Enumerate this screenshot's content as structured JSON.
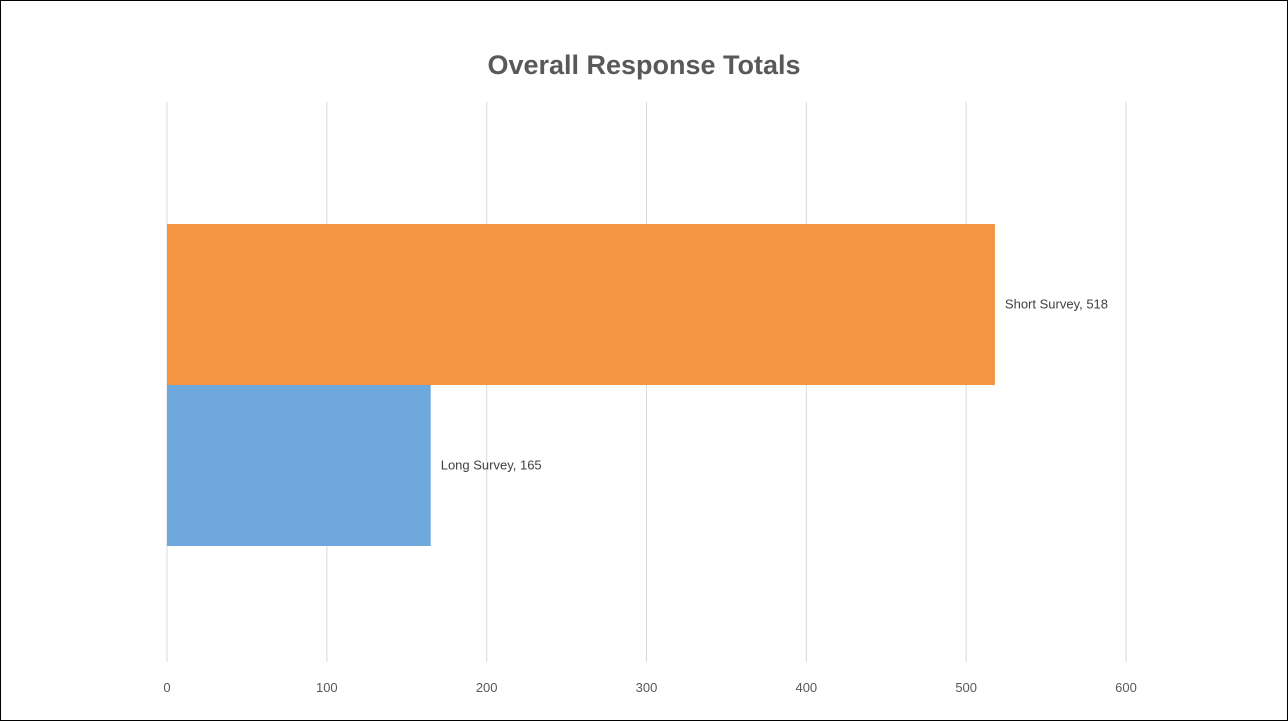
{
  "chart_data": {
    "type": "bar",
    "orientation": "horizontal",
    "title": "Overall Response Totals",
    "categories": [
      "Long Survey",
      "Short Survey"
    ],
    "values": [
      165,
      518
    ],
    "colors": [
      "#6FA8DC",
      "#F39542"
    ],
    "data_labels": [
      "Long Survey, 165",
      "Short Survey, 518"
    ],
    "xlim": [
      0,
      600
    ],
    "xticks": [
      0,
      100,
      200,
      300,
      400,
      500,
      600
    ],
    "xtick_labels": [
      "0",
      "100",
      "200",
      "300",
      "400",
      "500",
      "600"
    ],
    "grid": true,
    "xlabel": "",
    "ylabel": ""
  }
}
